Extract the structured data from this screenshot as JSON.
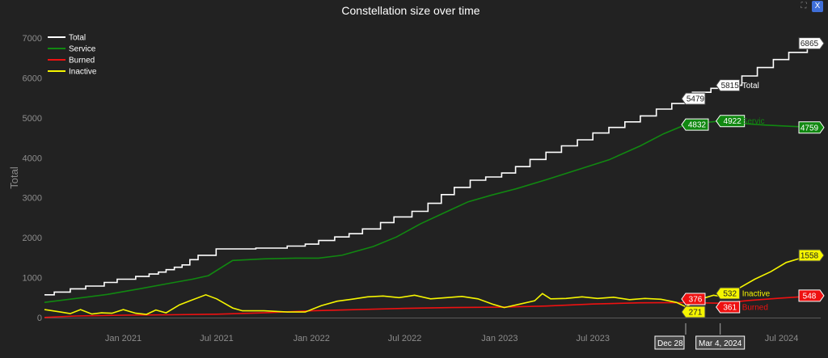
{
  "controls": {
    "close_label": "X",
    "expand_icon": "expand-icon"
  },
  "chart_data": {
    "type": "line",
    "title": "Constellation size over time",
    "ylabel": "Total",
    "xlabel": "",
    "ylim": [
      0,
      7000
    ],
    "xlim": [
      "2020-08-01",
      "2024-09-15"
    ],
    "grid": false,
    "legend_position": "top-left",
    "yticks": [
      0,
      1000,
      2000,
      3000,
      4000,
      5000,
      6000,
      7000
    ],
    "yticklabels": [
      "0",
      "1000",
      "2000",
      "3000",
      "4000",
      "5000",
      "6000",
      "7000"
    ],
    "xticks": [
      "2021-01-01",
      "2021-07-01",
      "2022-01-01",
      "2022-07-01",
      "2023-01-01",
      "2023-07-01",
      "2024-07-01"
    ],
    "xticklabels": [
      "Jan 2021",
      "Jul 2021",
      "Jan 2022",
      "Jul 2022",
      "Jan 2023",
      "Jul 2023",
      "Jul 2024"
    ],
    "colors": {
      "Total": "#ffffff",
      "Service": "#118811",
      "Burned": "#ee1111",
      "Inactive": "#f5f500"
    },
    "series": [
      {
        "name": "Total",
        "color": "#ffffff",
        "step": true,
        "x": [
          "2020-08-01",
          "2020-08-20",
          "2020-09-20",
          "2020-10-20",
          "2020-11-25",
          "2020-12-20",
          "2021-01-25",
          "2021-02-20",
          "2021-03-10",
          "2021-03-25",
          "2021-04-10",
          "2021-04-25",
          "2021-05-10",
          "2021-05-26",
          "2021-06-30",
          "2021-09-15",
          "2021-11-15",
          "2021-12-20",
          "2022-01-15",
          "2022-02-15",
          "2022-03-15",
          "2022-04-10",
          "2022-05-15",
          "2022-06-10",
          "2022-07-15",
          "2022-08-15",
          "2022-09-10",
          "2022-10-05",
          "2022-11-05",
          "2022-12-05",
          "2023-01-05",
          "2023-02-01",
          "2023-03-01",
          "2023-04-01",
          "2023-05-01",
          "2023-06-01",
          "2023-07-01",
          "2023-08-01",
          "2023-09-01",
          "2023-10-01",
          "2023-11-01",
          "2023-12-01",
          "2023-12-28",
          "2024-01-10",
          "2024-02-15",
          "2024-03-04",
          "2024-04-15",
          "2024-05-15",
          "2024-06-15",
          "2024-07-15",
          "2024-08-20",
          "2024-09-10"
        ],
        "y": [
          570,
          640,
          720,
          790,
          880,
          960,
          1030,
          1090,
          1140,
          1200,
          1260,
          1320,
          1450,
          1560,
          1720,
          1740,
          1790,
          1840,
          1930,
          2020,
          2100,
          2220,
          2380,
          2520,
          2660,
          2860,
          3080,
          3260,
          3440,
          3520,
          3620,
          3780,
          3960,
          4140,
          4300,
          4450,
          4620,
          4760,
          4900,
          5050,
          5220,
          5360,
          5479,
          5640,
          5740,
          5815,
          6050,
          6260,
          6460,
          6640,
          6800,
          6865
        ]
      },
      {
        "name": "Service",
        "color": "#118811",
        "step": false,
        "x": [
          "2020-08-01",
          "2020-10-01",
          "2020-12-01",
          "2021-02-01",
          "2021-04-01",
          "2021-05-15",
          "2021-06-15",
          "2021-08-01",
          "2021-10-01",
          "2021-12-01",
          "2022-01-15",
          "2022-03-01",
          "2022-05-01",
          "2022-06-15",
          "2022-08-01",
          "2022-09-15",
          "2022-11-01",
          "2022-12-15",
          "2023-02-01",
          "2023-04-01",
          "2023-06-01",
          "2023-08-01",
          "2023-10-01",
          "2023-11-15",
          "2023-12-28",
          "2024-02-01",
          "2024-03-04",
          "2024-04-15",
          "2024-06-01",
          "2024-07-15",
          "2024-09-10"
        ],
        "y": [
          380,
          480,
          580,
          720,
          860,
          960,
          1050,
          1430,
          1470,
          1490,
          1490,
          1560,
          1780,
          2020,
          2350,
          2620,
          2900,
          3060,
          3220,
          3450,
          3700,
          3950,
          4300,
          4600,
          4832,
          4880,
          4922,
          4860,
          4820,
          4790,
          4759
        ]
      },
      {
        "name": "Burned",
        "color": "#ee1111",
        "step": false,
        "x": [
          "2020-08-01",
          "2020-10-01",
          "2021-01-01",
          "2021-04-01",
          "2021-07-01",
          "2021-10-01",
          "2022-01-01",
          "2022-04-01",
          "2022-07-01",
          "2022-10-01",
          "2023-01-01",
          "2023-04-01",
          "2023-07-01",
          "2023-10-01",
          "2023-12-28",
          "2024-03-04",
          "2024-05-01",
          "2024-07-01",
          "2024-09-10"
        ],
        "y": [
          5,
          40,
          60,
          70,
          85,
          120,
          170,
          200,
          230,
          250,
          260,
          290,
          340,
          370,
          376,
          361,
          430,
          490,
          548
        ]
      },
      {
        "name": "Inactive",
        "color": "#f5f500",
        "step": false,
        "x": [
          "2020-08-01",
          "2020-09-01",
          "2020-09-20",
          "2020-10-10",
          "2020-11-01",
          "2020-11-20",
          "2020-12-10",
          "2021-01-01",
          "2021-01-25",
          "2021-02-15",
          "2021-03-05",
          "2021-03-25",
          "2021-04-20",
          "2021-05-10",
          "2021-06-10",
          "2021-07-01",
          "2021-08-01",
          "2021-08-20",
          "2021-10-01",
          "2021-11-15",
          "2021-12-20",
          "2022-01-20",
          "2022-02-20",
          "2022-03-20",
          "2022-04-20",
          "2022-05-20",
          "2022-06-20",
          "2022-07-20",
          "2022-08-20",
          "2022-09-20",
          "2022-10-20",
          "2022-11-20",
          "2022-12-20",
          "2023-01-10",
          "2023-02-10",
          "2023-03-10",
          "2023-03-25",
          "2023-04-10",
          "2023-05-10",
          "2023-06-10",
          "2023-07-10",
          "2023-08-10",
          "2023-09-10",
          "2023-10-10",
          "2023-11-10",
          "2023-12-10",
          "2023-12-28",
          "2024-01-25",
          "2024-02-20",
          "2024-03-04",
          "2024-04-10",
          "2024-05-10",
          "2024-06-10",
          "2024-07-10",
          "2024-08-10",
          "2024-09-10"
        ],
        "y": [
          200,
          140,
          100,
          200,
          90,
          120,
          110,
          200,
          110,
          80,
          190,
          120,
          320,
          420,
          570,
          470,
          240,
          170,
          170,
          140,
          140,
          300,
          410,
          460,
          520,
          540,
          500,
          560,
          470,
          500,
          530,
          470,
          330,
          250,
          340,
          420,
          600,
          470,
          480,
          520,
          480,
          510,
          450,
          480,
          460,
          380,
          271,
          460,
          560,
          532,
          740,
          960,
          1150,
          1380,
          1500,
          1558
        ]
      }
    ],
    "end_labels": [
      {
        "series": "Total",
        "value": "6865",
        "suffix": ""
      },
      {
        "series": "Service",
        "value": "4759",
        "suffix": ""
      },
      {
        "series": "Burned",
        "value": "548",
        "suffix": ""
      },
      {
        "series": "Inactive",
        "value": "1558",
        "suffix": ""
      }
    ],
    "hover_labels": [
      {
        "date": "2023-12-28",
        "date_text": "Dec 28, ",
        "total": "5479",
        "service": "4832",
        "burned": "376",
        "inactive": "271"
      },
      {
        "date": "2024-03-04",
        "date_text": "Mar 4, 2024",
        "total": "5815",
        "service": "4922",
        "burned": "361",
        "inactive": "532",
        "names": {
          "total": "Total",
          "service": "Servic",
          "burned": "Burned",
          "inactive": "Inactive"
        }
      }
    ]
  }
}
